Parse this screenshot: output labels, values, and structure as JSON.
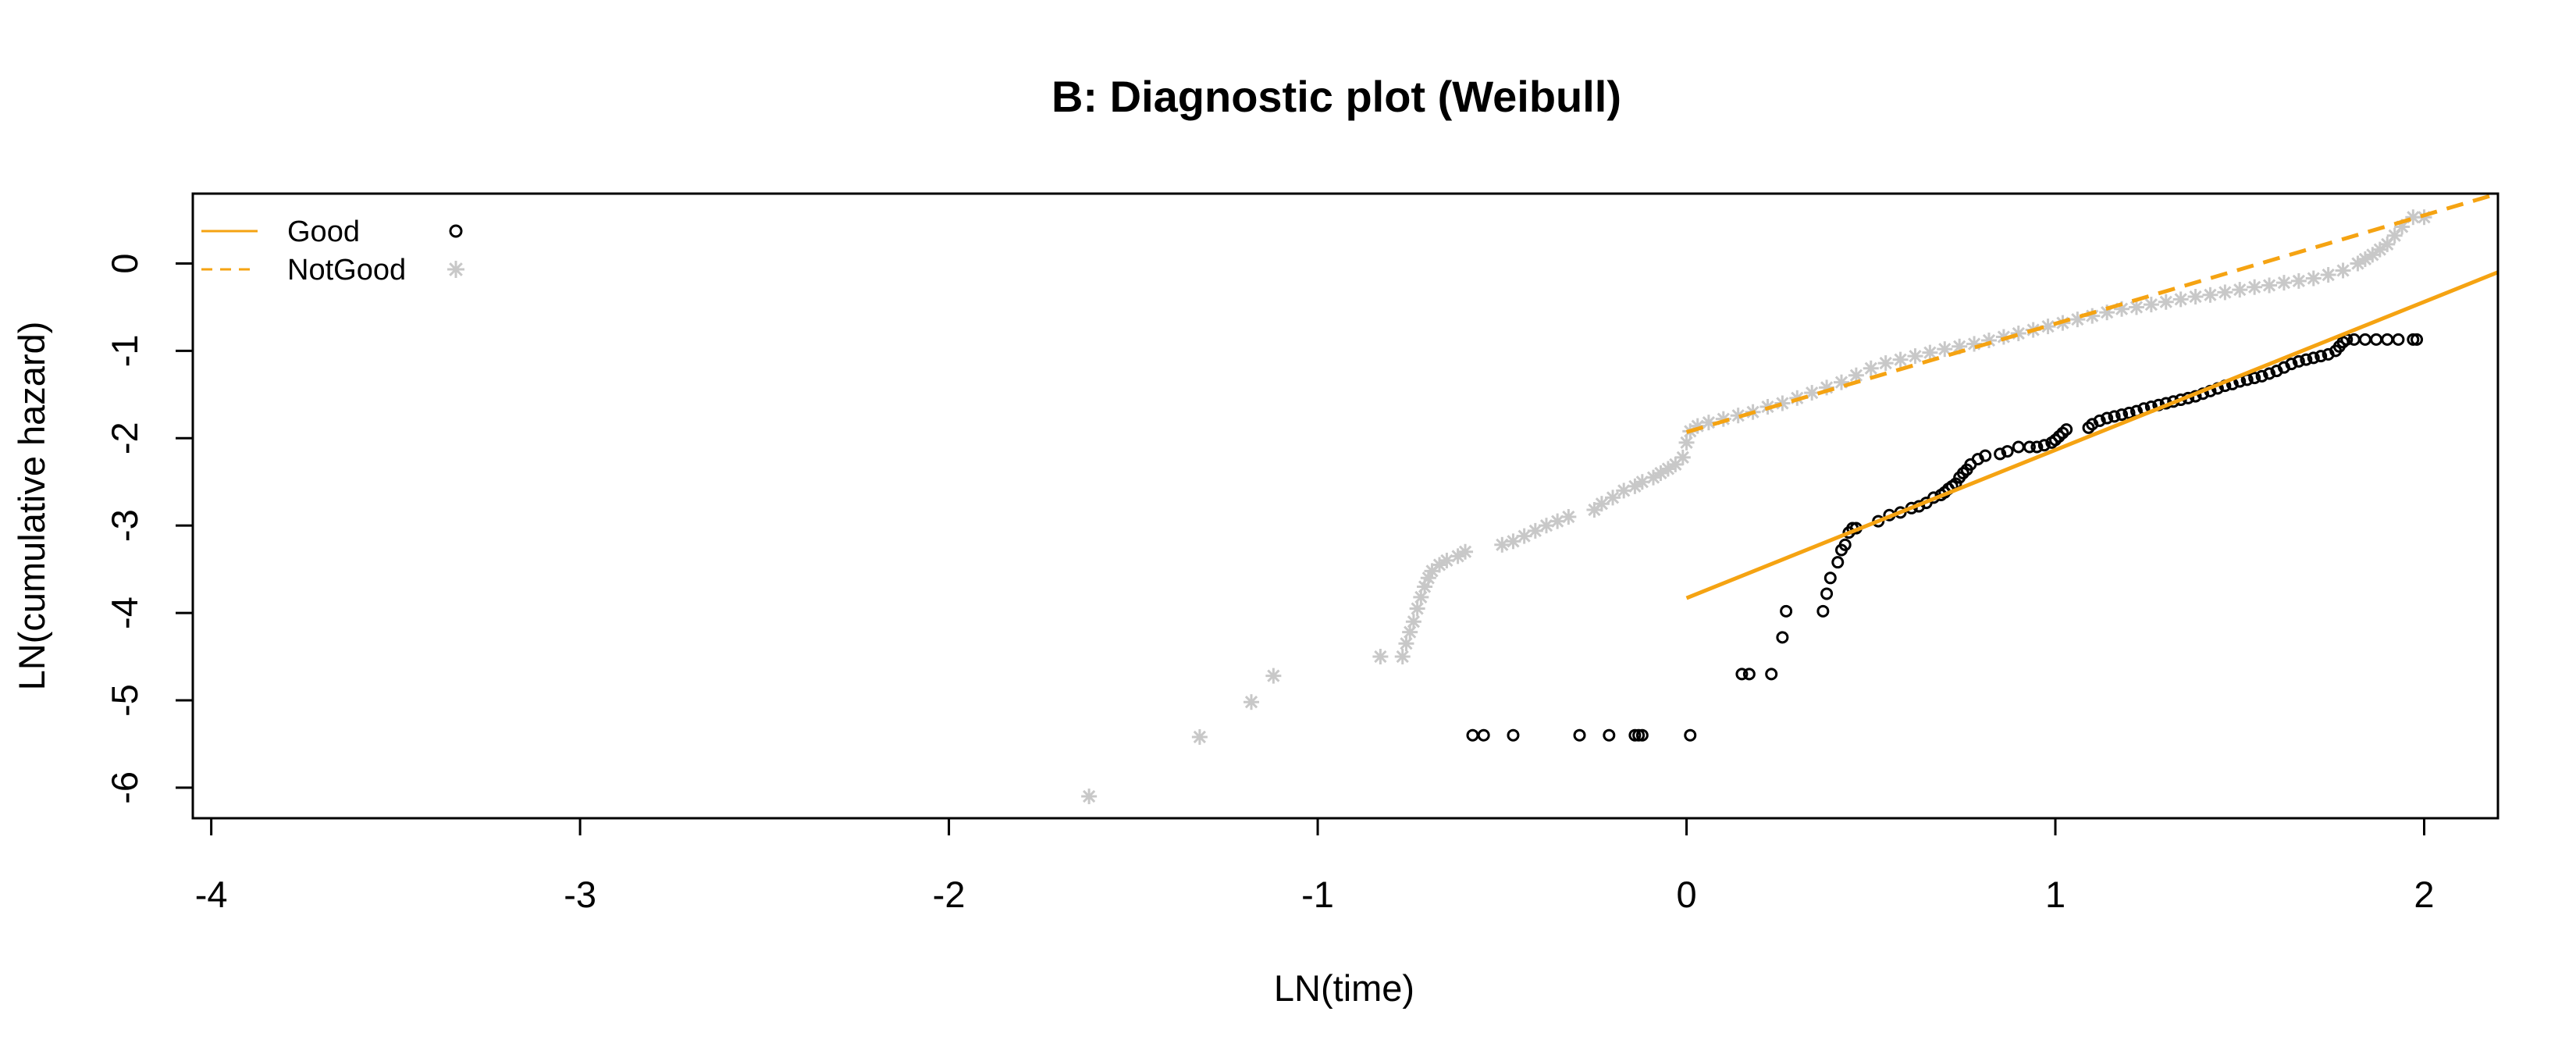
{
  "chart_data": {
    "type": "scatter",
    "title": "B: Diagnostic plot (Weibull)",
    "xlabel": "LN(time)",
    "ylabel": "LN(cumulative hazard)",
    "xlim": [
      -4.05,
      2.2
    ],
    "ylim": [
      -6.35,
      0.8
    ],
    "xticks": [
      -4,
      -3,
      -2,
      -1,
      0,
      1,
      2
    ],
    "yticks": [
      0,
      -1,
      -2,
      -3,
      -4,
      -5,
      -6
    ],
    "grid": false,
    "legend_position": "top-left",
    "colors": {
      "line": "#f5a312",
      "good_points": "#000000",
      "notgood_points": "#c8c8c8",
      "frame": "#000000"
    },
    "series": [
      {
        "name": "Good",
        "marker": "open-circle",
        "line_style": "solid",
        "points": [
          [
            -0.58,
            -5.4
          ],
          [
            -0.55,
            -5.4
          ],
          [
            -0.47,
            -5.4
          ],
          [
            -0.29,
            -5.4
          ],
          [
            -0.21,
            -5.4
          ],
          [
            -0.14,
            -5.4
          ],
          [
            -0.13,
            -5.4
          ],
          [
            -0.12,
            -5.4
          ],
          [
            0.01,
            -5.4
          ],
          [
            0.15,
            -4.7
          ],
          [
            0.17,
            -4.7
          ],
          [
            0.23,
            -4.7
          ],
          [
            0.26,
            -4.28
          ],
          [
            0.27,
            -3.98
          ],
          [
            0.37,
            -3.98
          ],
          [
            0.38,
            -3.78
          ],
          [
            0.39,
            -3.6
          ],
          [
            0.41,
            -3.42
          ],
          [
            0.42,
            -3.28
          ],
          [
            0.43,
            -3.22
          ],
          [
            0.44,
            -3.08
          ],
          [
            0.45,
            -3.03
          ],
          [
            0.46,
            -3.03
          ],
          [
            0.52,
            -2.95
          ],
          [
            0.55,
            -2.88
          ],
          [
            0.58,
            -2.85
          ],
          [
            0.61,
            -2.8
          ],
          [
            0.63,
            -2.78
          ],
          [
            0.65,
            -2.74
          ],
          [
            0.67,
            -2.68
          ],
          [
            0.69,
            -2.65
          ],
          [
            0.7,
            -2.62
          ],
          [
            0.71,
            -2.58
          ],
          [
            0.72,
            -2.55
          ],
          [
            0.73,
            -2.52
          ],
          [
            0.74,
            -2.45
          ],
          [
            0.75,
            -2.4
          ],
          [
            0.76,
            -2.36
          ],
          [
            0.77,
            -2.3
          ],
          [
            0.79,
            -2.24
          ],
          [
            0.81,
            -2.2
          ],
          [
            0.85,
            -2.18
          ],
          [
            0.87,
            -2.15
          ],
          [
            0.9,
            -2.1
          ],
          [
            0.93,
            -2.1
          ],
          [
            0.95,
            -2.1
          ],
          [
            0.97,
            -2.08
          ],
          [
            0.99,
            -2.05
          ],
          [
            1.0,
            -2.02
          ],
          [
            1.01,
            -1.98
          ],
          [
            1.02,
            -1.94
          ],
          [
            1.03,
            -1.9
          ],
          [
            1.09,
            -1.88
          ],
          [
            1.1,
            -1.84
          ],
          [
            1.12,
            -1.8
          ],
          [
            1.14,
            -1.77
          ],
          [
            1.16,
            -1.75
          ],
          [
            1.18,
            -1.73
          ],
          [
            1.2,
            -1.71
          ],
          [
            1.22,
            -1.69
          ],
          [
            1.24,
            -1.66
          ],
          [
            1.26,
            -1.64
          ],
          [
            1.28,
            -1.62
          ],
          [
            1.3,
            -1.6
          ],
          [
            1.32,
            -1.58
          ],
          [
            1.34,
            -1.56
          ],
          [
            1.36,
            -1.54
          ],
          [
            1.38,
            -1.52
          ],
          [
            1.4,
            -1.49
          ],
          [
            1.42,
            -1.46
          ],
          [
            1.44,
            -1.43
          ],
          [
            1.46,
            -1.4
          ],
          [
            1.48,
            -1.38
          ],
          [
            1.5,
            -1.35
          ],
          [
            1.52,
            -1.33
          ],
          [
            1.54,
            -1.31
          ],
          [
            1.56,
            -1.29
          ],
          [
            1.58,
            -1.26
          ],
          [
            1.6,
            -1.23
          ],
          [
            1.62,
            -1.19
          ],
          [
            1.64,
            -1.15
          ],
          [
            1.66,
            -1.12
          ],
          [
            1.68,
            -1.1
          ],
          [
            1.7,
            -1.08
          ],
          [
            1.72,
            -1.06
          ],
          [
            1.74,
            -1.04
          ],
          [
            1.76,
            -1.0
          ],
          [
            1.77,
            -0.95
          ],
          [
            1.78,
            -0.9
          ],
          [
            1.79,
            -0.87
          ],
          [
            1.81,
            -0.87
          ],
          [
            1.84,
            -0.87
          ],
          [
            1.87,
            -0.87
          ],
          [
            1.9,
            -0.87
          ],
          [
            1.93,
            -0.87
          ],
          [
            1.97,
            -0.87
          ],
          [
            1.98,
            -0.87
          ]
        ],
        "fit_line": {
          "x": [
            0.0,
            2.2
          ],
          "y": [
            -3.83,
            -0.1
          ]
        }
      },
      {
        "name": "NotGood",
        "marker": "asterisk",
        "line_style": "dashed",
        "points": [
          [
            -1.62,
            -6.1
          ],
          [
            -1.32,
            -5.42
          ],
          [
            -1.18,
            -5.02
          ],
          [
            -1.12,
            -4.72
          ],
          [
            -0.83,
            -4.5
          ],
          [
            -0.77,
            -4.5
          ],
          [
            -0.76,
            -4.35
          ],
          [
            -0.75,
            -4.22
          ],
          [
            -0.74,
            -4.1
          ],
          [
            -0.73,
            -3.95
          ],
          [
            -0.72,
            -3.82
          ],
          [
            -0.71,
            -3.7
          ],
          [
            -0.7,
            -3.6
          ],
          [
            -0.69,
            -3.52
          ],
          [
            -0.67,
            -3.45
          ],
          [
            -0.65,
            -3.4
          ],
          [
            -0.62,
            -3.35
          ],
          [
            -0.6,
            -3.3
          ],
          [
            -0.5,
            -3.22
          ],
          [
            -0.47,
            -3.18
          ],
          [
            -0.44,
            -3.12
          ],
          [
            -0.41,
            -3.06
          ],
          [
            -0.38,
            -3.0
          ],
          [
            -0.35,
            -2.95
          ],
          [
            -0.32,
            -2.9
          ],
          [
            -0.25,
            -2.82
          ],
          [
            -0.23,
            -2.75
          ],
          [
            -0.2,
            -2.68
          ],
          [
            -0.17,
            -2.6
          ],
          [
            -0.14,
            -2.55
          ],
          [
            -0.12,
            -2.5
          ],
          [
            -0.09,
            -2.45
          ],
          [
            -0.07,
            -2.4
          ],
          [
            -0.05,
            -2.35
          ],
          [
            -0.03,
            -2.3
          ],
          [
            -0.01,
            -2.22
          ],
          [
            0.0,
            -2.05
          ],
          [
            0.01,
            -1.92
          ],
          [
            0.03,
            -1.86
          ],
          [
            0.06,
            -1.82
          ],
          [
            0.1,
            -1.78
          ],
          [
            0.14,
            -1.74
          ],
          [
            0.18,
            -1.7
          ],
          [
            0.22,
            -1.64
          ],
          [
            0.26,
            -1.6
          ],
          [
            0.3,
            -1.54
          ],
          [
            0.34,
            -1.48
          ],
          [
            0.38,
            -1.42
          ],
          [
            0.42,
            -1.36
          ],
          [
            0.46,
            -1.28
          ],
          [
            0.5,
            -1.2
          ],
          [
            0.54,
            -1.14
          ],
          [
            0.58,
            -1.1
          ],
          [
            0.62,
            -1.06
          ],
          [
            0.66,
            -1.02
          ],
          [
            0.7,
            -0.98
          ],
          [
            0.74,
            -0.95
          ],
          [
            0.78,
            -0.92
          ],
          [
            0.82,
            -0.88
          ],
          [
            0.86,
            -0.84
          ],
          [
            0.9,
            -0.8
          ],
          [
            0.94,
            -0.76
          ],
          [
            0.98,
            -0.72
          ],
          [
            1.02,
            -0.68
          ],
          [
            1.06,
            -0.64
          ],
          [
            1.1,
            -0.6
          ],
          [
            1.14,
            -0.56
          ],
          [
            1.18,
            -0.52
          ],
          [
            1.22,
            -0.5
          ],
          [
            1.26,
            -0.47
          ],
          [
            1.3,
            -0.44
          ],
          [
            1.34,
            -0.41
          ],
          [
            1.38,
            -0.38
          ],
          [
            1.42,
            -0.36
          ],
          [
            1.46,
            -0.33
          ],
          [
            1.5,
            -0.3
          ],
          [
            1.54,
            -0.27
          ],
          [
            1.58,
            -0.25
          ],
          [
            1.62,
            -0.22
          ],
          [
            1.66,
            -0.2
          ],
          [
            1.7,
            -0.17
          ],
          [
            1.74,
            -0.13
          ],
          [
            1.78,
            -0.08
          ],
          [
            1.82,
            0.0
          ],
          [
            1.84,
            0.05
          ],
          [
            1.86,
            0.1
          ],
          [
            1.88,
            0.16
          ],
          [
            1.9,
            0.22
          ],
          [
            1.92,
            0.32
          ],
          [
            1.94,
            0.42
          ],
          [
            1.97,
            0.53
          ],
          [
            2.0,
            0.53
          ]
        ],
        "fit_line": {
          "x": [
            0.0,
            2.2
          ],
          "y": [
            -1.93,
            0.8
          ]
        }
      }
    ]
  }
}
